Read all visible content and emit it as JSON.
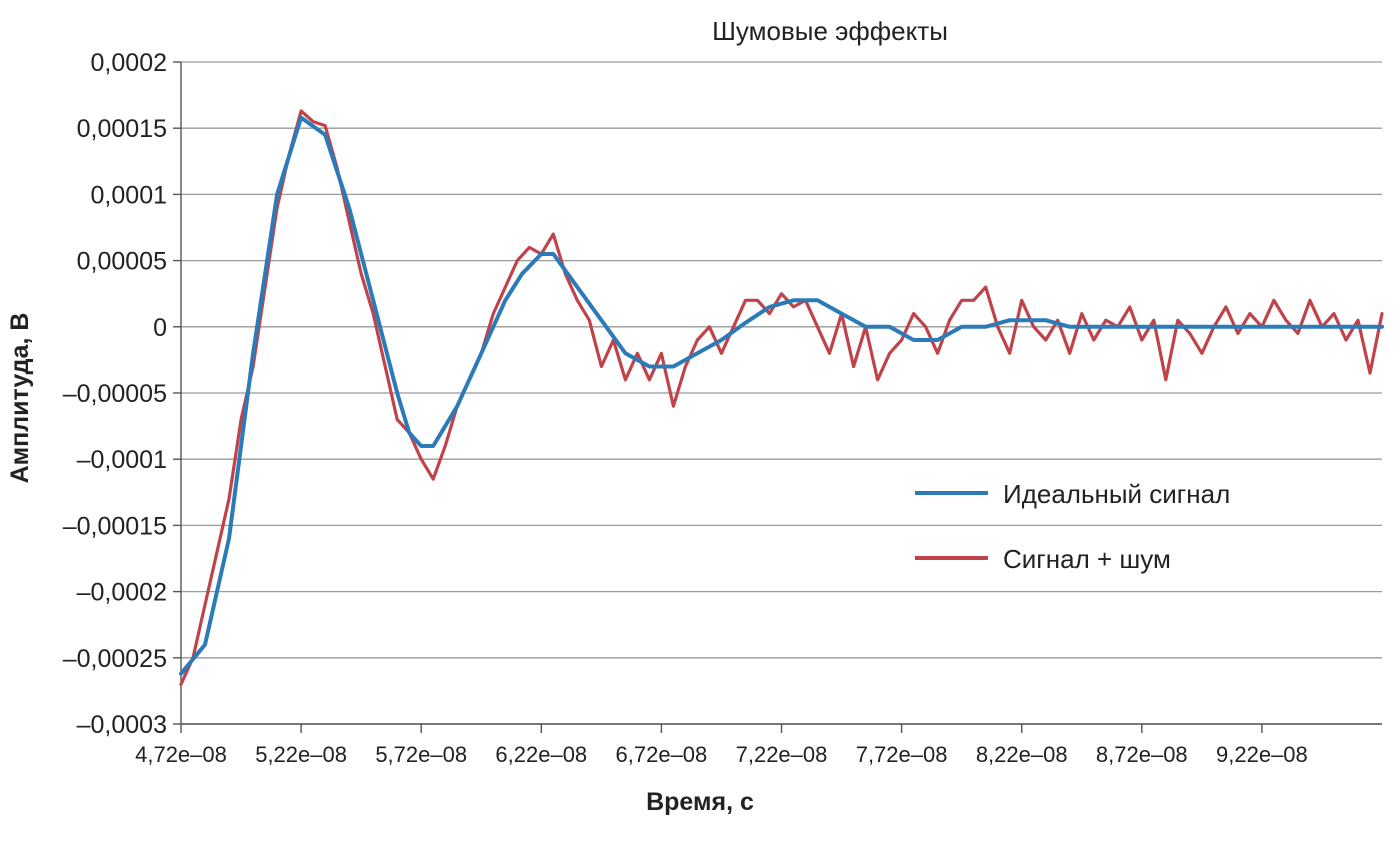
{
  "chart_data": {
    "type": "line",
    "title": "Шумовые эффекты",
    "xlabel": "Время, с",
    "ylabel": "Амплитуда, В",
    "x_tick_labels": [
      "4,72e–08",
      "5,22e–08",
      "5,72e–08",
      "6,22e–08",
      "6,72e–08",
      "7,22e–08",
      "7,72e–08",
      "8,22e–08",
      "8,72e–08",
      "9,22e–08"
    ],
    "y_tick_labels": [
      "0,0002",
      "0,00015",
      "0,0001",
      "0,00005",
      "0",
      "–0,00005",
      "–0,0001",
      "–0,00015",
      "–0,0002",
      "–0,00025",
      "–0,0003"
    ],
    "ylim": [
      -0.0003,
      0.0002
    ],
    "xlim": [
      4.72e-08,
      9.72e-08
    ],
    "grid": true,
    "legend_position": "right-middle",
    "series": [
      {
        "name": "Идеальный сигнал",
        "color": "#2b7bb9",
        "x": [
          4.72e-08,
          4.82e-08,
          4.92e-08,
          5.02e-08,
          5.12e-08,
          5.22e-08,
          5.32e-08,
          5.42e-08,
          5.52e-08,
          5.62e-08,
          5.67e-08,
          5.72e-08,
          5.77e-08,
          5.87e-08,
          5.97e-08,
          6.07e-08,
          6.14e-08,
          6.22e-08,
          6.27e-08,
          6.37e-08,
          6.47e-08,
          6.57e-08,
          6.67e-08,
          6.77e-08,
          6.87e-08,
          6.97e-08,
          7.07e-08,
          7.17e-08,
          7.27e-08,
          7.37e-08,
          7.47e-08,
          7.57e-08,
          7.67e-08,
          7.77e-08,
          7.87e-08,
          7.97e-08,
          8.07e-08,
          8.17e-08,
          8.32e-08,
          8.42e-08,
          9.72e-08
        ],
        "values": [
          -0.000262,
          -0.00024,
          -0.00016,
          -2e-05,
          0.0001,
          0.000158,
          0.000145,
          9e-05,
          2e-05,
          -5e-05,
          -8e-05,
          -9e-05,
          -9e-05,
          -6e-05,
          -2e-05,
          2e-05,
          4e-05,
          5.5e-05,
          5.5e-05,
          3e-05,
          5e-06,
          -2e-05,
          -3e-05,
          -3e-05,
          -2e-05,
          -1e-05,
          3e-06,
          1.5e-05,
          2e-05,
          2e-05,
          1e-05,
          0.0,
          0.0,
          -1e-05,
          -1e-05,
          0.0,
          0.0,
          5e-06,
          5e-06,
          0.0,
          0.0
        ]
      },
      {
        "name": "Сигнал + шум",
        "color": "#c0434a",
        "x": [
          4.72e-08,
          4.77e-08,
          4.82e-08,
          4.87e-08,
          4.92e-08,
          4.97e-08,
          5.02e-08,
          5.07e-08,
          5.12e-08,
          5.17e-08,
          5.22e-08,
          5.27e-08,
          5.32e-08,
          5.37e-08,
          5.42e-08,
          5.47e-08,
          5.52e-08,
          5.57e-08,
          5.62e-08,
          5.67e-08,
          5.72e-08,
          5.77e-08,
          5.82e-08,
          5.87e-08,
          5.92e-08,
          5.97e-08,
          6.02e-08,
          6.07e-08,
          6.12e-08,
          6.17e-08,
          6.22e-08,
          6.27e-08,
          6.32e-08,
          6.37e-08,
          6.42e-08,
          6.47e-08,
          6.52e-08,
          6.57e-08,
          6.62e-08,
          6.67e-08,
          6.72e-08,
          6.77e-08,
          6.82e-08,
          6.87e-08,
          6.92e-08,
          6.97e-08,
          7.02e-08,
          7.07e-08,
          7.12e-08,
          7.17e-08,
          7.22e-08,
          7.27e-08,
          7.32e-08,
          7.37e-08,
          7.42e-08,
          7.47e-08,
          7.52e-08,
          7.57e-08,
          7.62e-08,
          7.67e-08,
          7.72e-08,
          7.77e-08,
          7.82e-08,
          7.87e-08,
          7.92e-08,
          7.97e-08,
          8.02e-08,
          8.07e-08,
          8.12e-08,
          8.17e-08,
          8.22e-08,
          8.27e-08,
          8.32e-08,
          8.37e-08,
          8.42e-08,
          8.47e-08,
          8.52e-08,
          8.57e-08,
          8.62e-08,
          8.67e-08,
          8.72e-08,
          8.77e-08,
          8.82e-08,
          8.87e-08,
          8.92e-08,
          8.97e-08,
          9.02e-08,
          9.07e-08,
          9.12e-08,
          9.17e-08,
          9.22e-08,
          9.27e-08,
          9.32e-08,
          9.37e-08,
          9.42e-08,
          9.47e-08,
          9.52e-08,
          9.57e-08,
          9.62e-08,
          9.67e-08,
          9.72e-08
        ],
        "values": [
          -0.00027,
          -0.00025,
          -0.00021,
          -0.00017,
          -0.00013,
          -7e-05,
          -3e-05,
          3e-05,
          9e-05,
          0.00013,
          0.000163,
          0.000155,
          0.000152,
          0.00012,
          8e-05,
          4e-05,
          1e-05,
          -3e-05,
          -7e-05,
          -8e-05,
          -0.0001,
          -0.000115,
          -9e-05,
          -6e-05,
          -4e-05,
          -2e-05,
          1e-05,
          3e-05,
          5e-05,
          6e-05,
          5.5e-05,
          7e-05,
          4e-05,
          2e-05,
          5e-06,
          -3e-05,
          -1e-05,
          -4e-05,
          -2e-05,
          -4e-05,
          -2e-05,
          -6e-05,
          -3e-05,
          -1e-05,
          0.0,
          -2e-05,
          0.0,
          2e-05,
          2e-05,
          1e-05,
          2.5e-05,
          1.5e-05,
          2e-05,
          0.0,
          -2e-05,
          1e-05,
          -3e-05,
          0.0,
          -4e-05,
          -2e-05,
          -1e-05,
          1e-05,
          0.0,
          -2e-05,
          5e-06,
          2e-05,
          2e-05,
          3e-05,
          0.0,
          -2e-05,
          2e-05,
          0.0,
          -1e-05,
          5e-06,
          -2e-05,
          1e-05,
          -1e-05,
          5e-06,
          0.0,
          1.5e-05,
          -1e-05,
          5e-06,
          -4e-05,
          5e-06,
          -5e-06,
          -2e-05,
          0.0,
          1.5e-05,
          -5e-06,
          1e-05,
          0.0,
          2e-05,
          5e-06,
          -5e-06,
          2e-05,
          0.0,
          1e-05,
          -1e-05,
          5e-06,
          -3.5e-05,
          1e-05
        ]
      }
    ]
  }
}
